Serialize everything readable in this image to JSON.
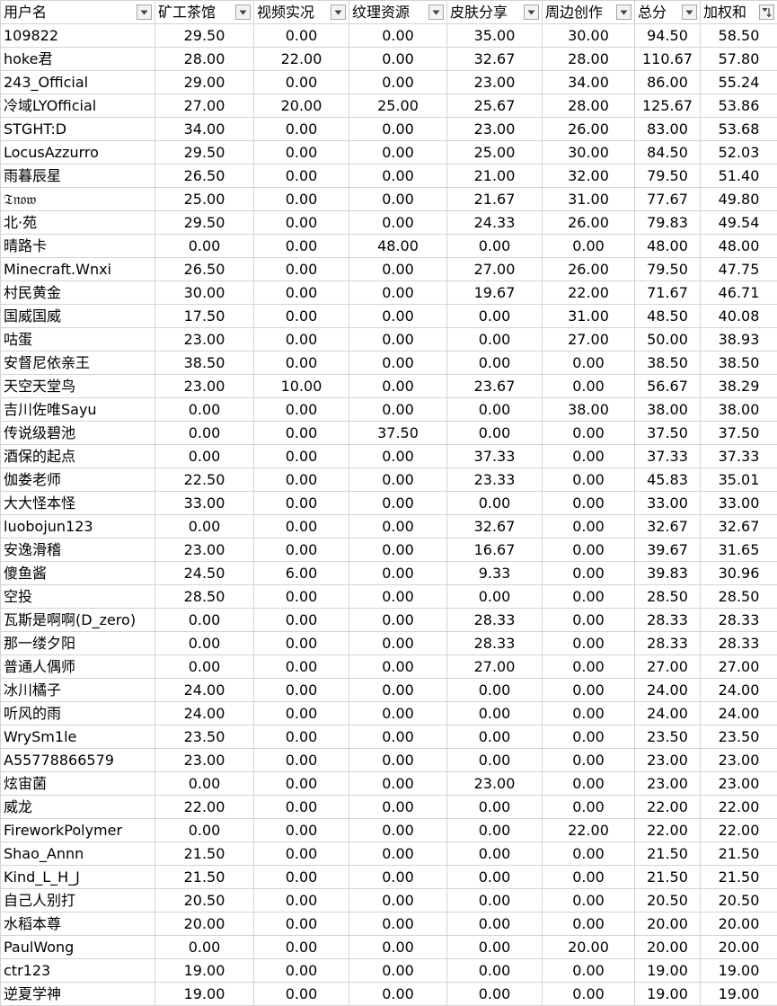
{
  "sheet": {
    "columns": [
      {
        "label": "用户名",
        "filter_icon": "dropdown-arrow-icon"
      },
      {
        "label": "矿工茶馆",
        "filter_icon": "dropdown-arrow-icon"
      },
      {
        "label": "视频实况",
        "filter_icon": "dropdown-arrow-icon"
      },
      {
        "label": "纹理资源",
        "filter_icon": "dropdown-arrow-icon"
      },
      {
        "label": "皮肤分享",
        "filter_icon": "dropdown-arrow-icon"
      },
      {
        "label": "周边创作",
        "filter_icon": "dropdown-arrow-icon"
      },
      {
        "label": "总分",
        "filter_icon": "dropdown-arrow-icon"
      },
      {
        "label": "加权和",
        "filter_icon": "sort-descending-icon"
      }
    ],
    "rows": [
      [
        "109822",
        "29.50",
        "0.00",
        "0.00",
        "35.00",
        "30.00",
        "94.50",
        "58.50"
      ],
      [
        "hoke君",
        "28.00",
        "22.00",
        "0.00",
        "32.67",
        "28.00",
        "110.67",
        "57.80"
      ],
      [
        "243_Official",
        "29.00",
        "0.00",
        "0.00",
        "23.00",
        "34.00",
        "86.00",
        "55.24"
      ],
      [
        "冷域LYOfficial",
        "27.00",
        "20.00",
        "25.00",
        "25.67",
        "28.00",
        "125.67",
        "53.86"
      ],
      [
        "STGHT:D",
        "34.00",
        "0.00",
        "0.00",
        "23.00",
        "26.00",
        "83.00",
        "53.68"
      ],
      [
        "LocusAzzurro",
        "29.50",
        "0.00",
        "0.00",
        "25.00",
        "30.00",
        "84.50",
        "52.03"
      ],
      [
        "雨暮辰星",
        "26.50",
        "0.00",
        "0.00",
        "21.00",
        "32.00",
        "79.50",
        "51.40"
      ],
      [
        "𝔗𝔫𝔬𝔴",
        "25.00",
        "0.00",
        "0.00",
        "21.67",
        "31.00",
        "77.67",
        "49.80"
      ],
      [
        "北·苑",
        "29.50",
        "0.00",
        "0.00",
        "24.33",
        "26.00",
        "79.83",
        "49.54"
      ],
      [
        "晴路卡",
        "0.00",
        "0.00",
        "48.00",
        "0.00",
        "0.00",
        "48.00",
        "48.00"
      ],
      [
        "Minecraft.Wnxi",
        "26.50",
        "0.00",
        "0.00",
        "27.00",
        "26.00",
        "79.50",
        "47.75"
      ],
      [
        "村民黄金",
        "30.00",
        "0.00",
        "0.00",
        "19.67",
        "22.00",
        "71.67",
        "46.71"
      ],
      [
        "国威国威",
        "17.50",
        "0.00",
        "0.00",
        "0.00",
        "31.00",
        "48.50",
        "40.08"
      ],
      [
        "咕蛋",
        "23.00",
        "0.00",
        "0.00",
        "0.00",
        "27.00",
        "50.00",
        "38.93"
      ],
      [
        "安督尼依亲王",
        "38.50",
        "0.00",
        "0.00",
        "0.00",
        "0.00",
        "38.50",
        "38.50"
      ],
      [
        "天空天堂鸟",
        "23.00",
        "10.00",
        "0.00",
        "23.67",
        "0.00",
        "56.67",
        "38.29"
      ],
      [
        "吉川佐唯Sayu",
        "0.00",
        "0.00",
        "0.00",
        "0.00",
        "38.00",
        "38.00",
        "38.00"
      ],
      [
        "传说级碧池",
        "0.00",
        "0.00",
        "37.50",
        "0.00",
        "0.00",
        "37.50",
        "37.50"
      ],
      [
        "酒保的起点",
        "0.00",
        "0.00",
        "0.00",
        "37.33",
        "0.00",
        "37.33",
        "37.33"
      ],
      [
        "伽娄老师",
        "22.50",
        "0.00",
        "0.00",
        "23.33",
        "0.00",
        "45.83",
        "35.01"
      ],
      [
        "大大怪本怪",
        "33.00",
        "0.00",
        "0.00",
        "0.00",
        "0.00",
        "33.00",
        "33.00"
      ],
      [
        "luobojun123",
        "0.00",
        "0.00",
        "0.00",
        "32.67",
        "0.00",
        "32.67",
        "32.67"
      ],
      [
        "安逸滑稽",
        "23.00",
        "0.00",
        "0.00",
        "16.67",
        "0.00",
        "39.67",
        "31.65"
      ],
      [
        "傻鱼酱",
        "24.50",
        "6.00",
        "0.00",
        "9.33",
        "0.00",
        "39.83",
        "30.96"
      ],
      [
        "空投",
        "28.50",
        "0.00",
        "0.00",
        "0.00",
        "0.00",
        "28.50",
        "28.50"
      ],
      [
        "瓦斯是啊啊(D_zero)",
        "0.00",
        "0.00",
        "0.00",
        "28.33",
        "0.00",
        "28.33",
        "28.33"
      ],
      [
        "那一缕夕阳",
        "0.00",
        "0.00",
        "0.00",
        "28.33",
        "0.00",
        "28.33",
        "28.33"
      ],
      [
        "普通人偶师",
        "0.00",
        "0.00",
        "0.00",
        "27.00",
        "0.00",
        "27.00",
        "27.00"
      ],
      [
        "冰川橘子",
        "24.00",
        "0.00",
        "0.00",
        "0.00",
        "0.00",
        "24.00",
        "24.00"
      ],
      [
        "听风的雨",
        "24.00",
        "0.00",
        "0.00",
        "0.00",
        "0.00",
        "24.00",
        "24.00"
      ],
      [
        "WrySm1le",
        "23.50",
        "0.00",
        "0.00",
        "0.00",
        "0.00",
        "23.50",
        "23.50"
      ],
      [
        "A55778866579",
        "23.00",
        "0.00",
        "0.00",
        "0.00",
        "0.00",
        "23.00",
        "23.00"
      ],
      [
        "炫宙菌",
        "0.00",
        "0.00",
        "0.00",
        "23.00",
        "0.00",
        "23.00",
        "23.00"
      ],
      [
        "威龙",
        "22.00",
        "0.00",
        "0.00",
        "0.00",
        "0.00",
        "22.00",
        "22.00"
      ],
      [
        "FireworkPolymer",
        "0.00",
        "0.00",
        "0.00",
        "0.00",
        "22.00",
        "22.00",
        "22.00"
      ],
      [
        "Shao_Annn",
        "21.50",
        "0.00",
        "0.00",
        "0.00",
        "0.00",
        "21.50",
        "21.50"
      ],
      [
        "Kind_L_H_J",
        "21.50",
        "0.00",
        "0.00",
        "0.00",
        "0.00",
        "21.50",
        "21.50"
      ],
      [
        "自己人别打",
        "20.50",
        "0.00",
        "0.00",
        "0.00",
        "0.00",
        "20.50",
        "20.50"
      ],
      [
        "水稻本尊",
        "20.00",
        "0.00",
        "0.00",
        "0.00",
        "0.00",
        "20.00",
        "20.00"
      ],
      [
        "PaulWong",
        "0.00",
        "0.00",
        "0.00",
        "0.00",
        "20.00",
        "20.00",
        "20.00"
      ],
      [
        "ctr123",
        "19.00",
        "0.00",
        "0.00",
        "0.00",
        "0.00",
        "19.00",
        "19.00"
      ],
      [
        "逆夏学神",
        "19.00",
        "0.00",
        "0.00",
        "0.00",
        "0.00",
        "19.00",
        "19.00"
      ]
    ],
    "colors": {
      "gridline": "#d4d4d4",
      "filter_button_bg": "#f3f3f3",
      "filter_button_border": "#a6a6a6"
    }
  }
}
